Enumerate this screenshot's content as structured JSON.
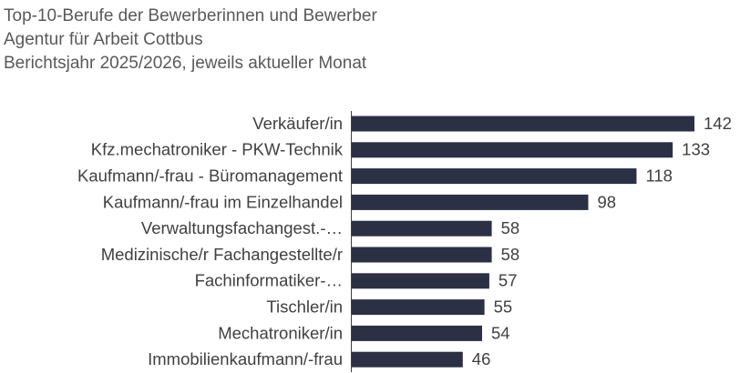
{
  "chart_data": {
    "type": "hbar",
    "title": "Top-10-Berufe der Bewerberinnen und Bewerber",
    "subtitle": [
      "Agentur für Arbeit Cottbus",
      "Berichtsjahr 2025/2026, jeweils aktueller Monat"
    ],
    "categories": [
      "Verkäufer/in",
      "Kfz.mechatroniker - PKW-Technik",
      "Kaufmann/-frau - Büromanagement",
      "Kaufmann/-frau im Einzelhandel",
      "Verwaltungsfachangest.-…",
      "Medizinische/r Fachangestellte/r",
      "Fachinformatiker-…",
      "Tischler/in",
      "Mechatroniker/in",
      "Immobilienkaufmann/-frau"
    ],
    "values": [
      142,
      133,
      118,
      98,
      58,
      58,
      57,
      55,
      54,
      46
    ],
    "color": "#2b3045"
  }
}
